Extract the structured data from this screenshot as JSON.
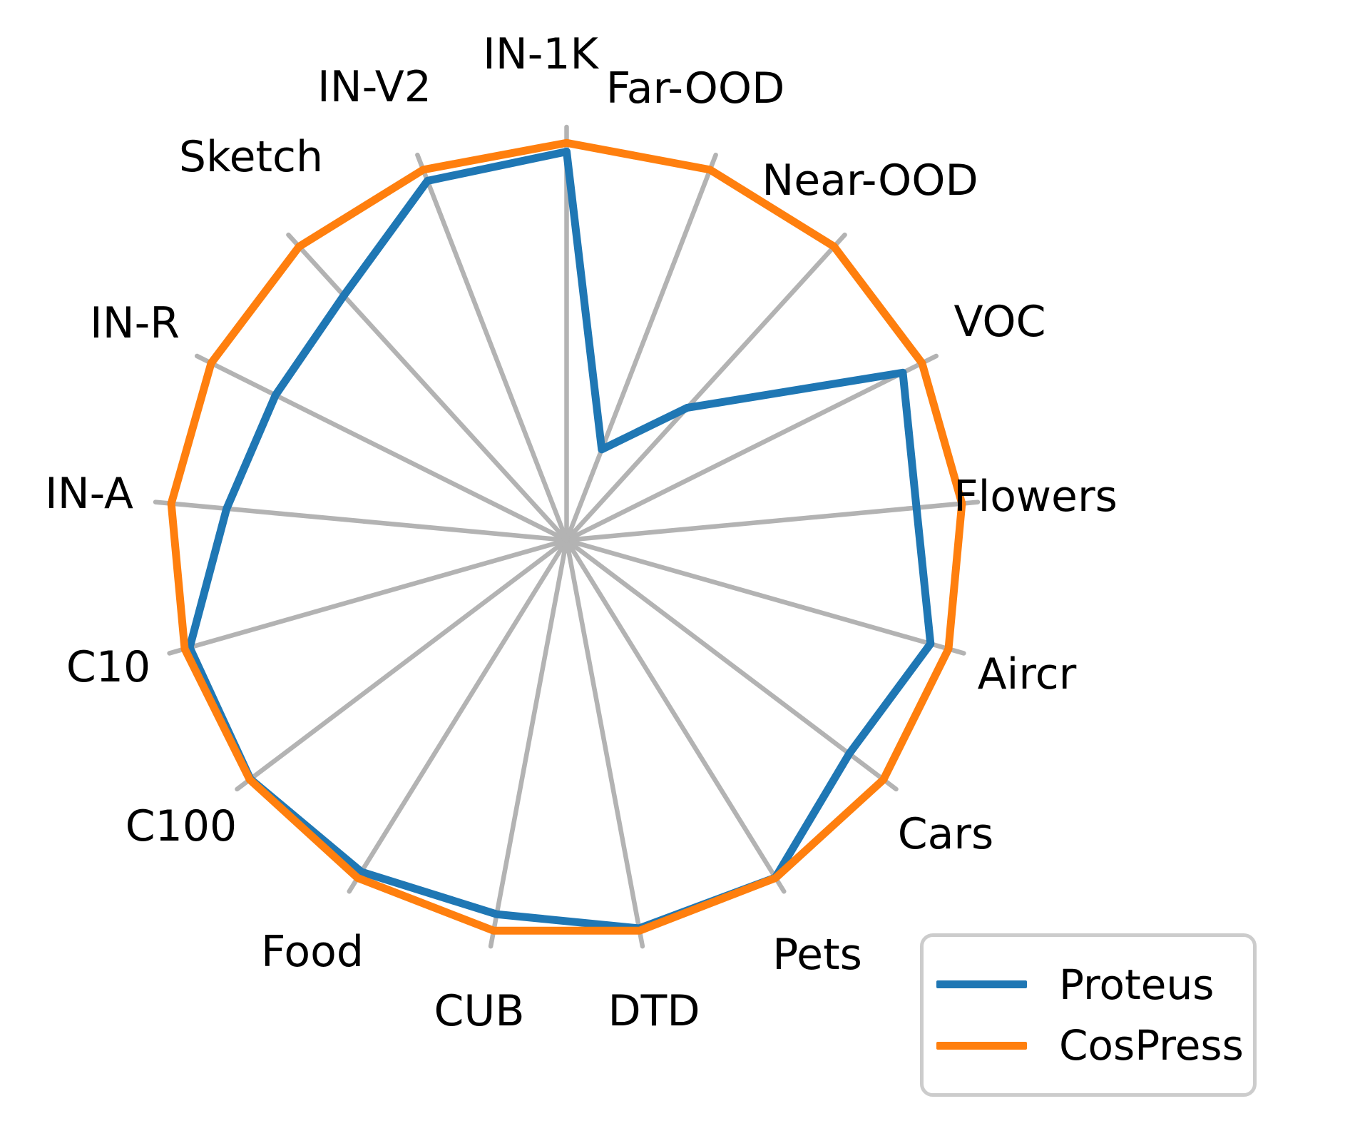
{
  "chart_data": {
    "type": "radar",
    "title": "",
    "categories": [
      "IN-1K",
      "Far-OOD",
      "Near-OOD",
      "VOC",
      "Flowers",
      "Aircr",
      "Cars",
      "Pets",
      "DTD",
      "CUB",
      "Food",
      "C100",
      "C10",
      "IN-A",
      "IN-R",
      "Sketch",
      "IN-V2"
    ],
    "series": [
      {
        "name": "Proteus",
        "color": "#1f77b4",
        "values": [
          0.978,
          0.245,
          0.451,
          0.946,
          0.885,
          0.953,
          0.892,
          0.999,
          0.994,
          0.958,
          0.982,
          0.998,
          0.987,
          0.86,
          0.819,
          0.833,
          0.97
        ]
      },
      {
        "name": "CosPress",
        "color": "#ff7f0e",
        "values": [
          1.0,
          1.0,
          1.0,
          1.0,
          1.0,
          1.0,
          1.0,
          1.0,
          1.0,
          1.0,
          1.0,
          1.0,
          1.0,
          1.0,
          1.0,
          1.0,
          1.0
        ]
      }
    ],
    "rlim": [
      0,
      1.04
    ],
    "start_angle_deg": 90,
    "direction": "clockwise",
    "grid": {
      "spokes": true,
      "rings": false,
      "color": "#b3b3b3"
    },
    "legend_position": "lower right",
    "xlabel": "",
    "ylabel": ""
  }
}
